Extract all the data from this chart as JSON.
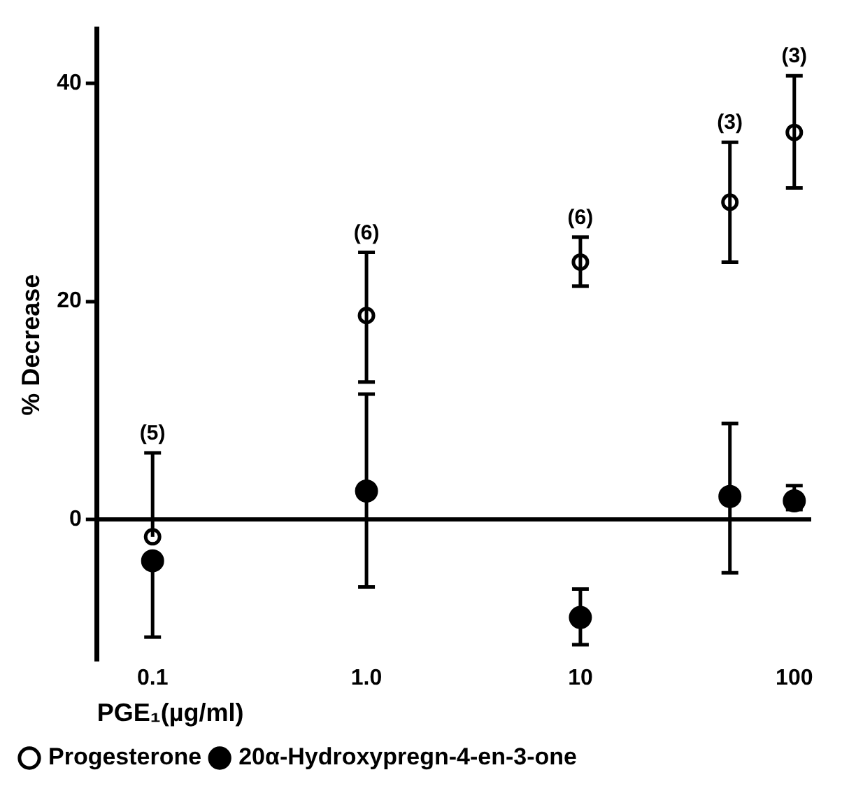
{
  "chart_data": {
    "type": "scatter",
    "ylabel": "% Decrease",
    "xlabel": "PGE₁(µg/ml)",
    "log": "x",
    "xlim": [
      0.055,
      120
    ],
    "xticks": [
      {
        "value": 0.1,
        "label": "0.1"
      },
      {
        "value": 1,
        "label": "1.0"
      },
      10,
      100
    ],
    "ylim": [
      -13,
      45
    ],
    "yticks": [
      0,
      20,
      40
    ],
    "grid": false,
    "legend": "bottom",
    "marker": "circle",
    "ref_lines": [
      {
        "axis": "y",
        "value": 0,
        "color": "#000000"
      }
    ],
    "series": [
      {
        "name": "Progesterone",
        "color": "#000000",
        "x": [
          0.1,
          1,
          10,
          50,
          100
        ],
        "values": [
          -1.6,
          18.7,
          23.6,
          29.1,
          35.5
        ],
        "errors": [
          [
            -1.6,
            6.1
          ],
          [
            12.6,
            24.5
          ],
          [
            21.4,
            25.9
          ],
          [
            23.6,
            34.6
          ],
          [
            30.4,
            40.7
          ]
        ]
      },
      {
        "name": "20α-Hydroxypregn-4-en-3-one",
        "color": "#000000",
        "x": [
          0.1,
          1,
          10,
          50,
          100
        ],
        "values": [
          -3.8,
          2.6,
          -9.0,
          2.1,
          1.7
        ],
        "errors": [
          [
            -10.8,
            -3.8
          ],
          [
            -6.2,
            11.5
          ],
          [
            -11.5,
            -6.4
          ],
          [
            -4.9,
            8.8
          ],
          [
            0.9,
            3.1
          ]
        ]
      }
    ],
    "annotations": [
      {
        "text": "(5)",
        "x": 0.1,
        "y": 6.1
      },
      {
        "text": "(6)",
        "x": 1,
        "y": 24.5
      },
      {
        "text": "(6)",
        "x": 10,
        "y": 25.9
      },
      {
        "text": "(3)",
        "x": 50,
        "y": 34.6
      },
      {
        "text": "(3)",
        "x": 100,
        "y": 40.7
      }
    ]
  }
}
